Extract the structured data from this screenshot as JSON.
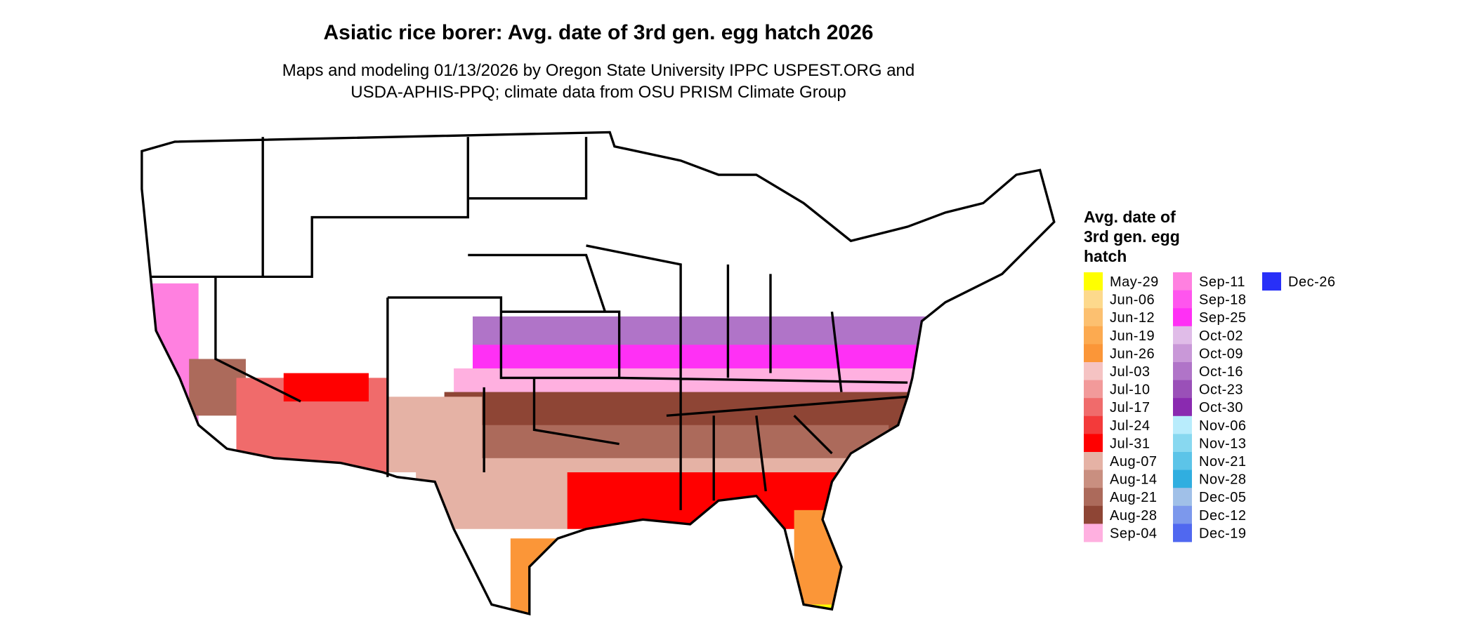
{
  "title": "Asiatic rice borer: Avg. date of 3rd gen. egg hatch 2026",
  "subtitle": [
    "Maps and modeling 01/13/2026 by Oregon State University IPPC USPEST.ORG and",
    "USDA-APHIS-PPQ; climate data from OSU PRISM Climate Group"
  ],
  "legend": {
    "title": [
      "Avg. date of",
      "3rd gen. egg",
      "hatch"
    ],
    "items": [
      {
        "label": "May-29",
        "color": "#ffff00"
      },
      {
        "label": "Jun-06",
        "color": "#fdd98c"
      },
      {
        "label": "Jun-12",
        "color": "#fcc070"
      },
      {
        "label": "Jun-19",
        "color": "#fcaa50"
      },
      {
        "label": "Jun-26",
        "color": "#fb9638"
      },
      {
        "label": "Jul-03",
        "color": "#f5c3c3"
      },
      {
        "label": "Jul-10",
        "color": "#f29a9a"
      },
      {
        "label": "Jul-17",
        "color": "#f06b6b"
      },
      {
        "label": "Jul-24",
        "color": "#f33a3a"
      },
      {
        "label": "Jul-31",
        "color": "#ff0000"
      },
      {
        "label": "Aug-07",
        "color": "#e5b2a5"
      },
      {
        "label": "Aug-14",
        "color": "#c98f80"
      },
      {
        "label": "Aug-21",
        "color": "#ac6a5b"
      },
      {
        "label": "Aug-28",
        "color": "#8e4535"
      },
      {
        "label": "Sep-04",
        "color": "#ffb0e0"
      },
      {
        "label": "Sep-11",
        "color": "#ff80e0"
      },
      {
        "label": "Sep-18",
        "color": "#ff55ee"
      },
      {
        "label": "Sep-25",
        "color": "#ff30f5"
      },
      {
        "label": "Oct-02",
        "color": "#e0bce8"
      },
      {
        "label": "Oct-09",
        "color": "#c998d8"
      },
      {
        "label": "Oct-16",
        "color": "#b074c8"
      },
      {
        "label": "Oct-23",
        "color": "#9a50b8"
      },
      {
        "label": "Oct-30",
        "color": "#8a2ab0"
      },
      {
        "label": "Nov-06",
        "color": "#b8ecfc"
      },
      {
        "label": "Nov-13",
        "color": "#88d8f0"
      },
      {
        "label": "Nov-21",
        "color": "#5cc4e8"
      },
      {
        "label": "Nov-28",
        "color": "#30aee0"
      },
      {
        "label": "Dec-05",
        "color": "#a0c0e8"
      },
      {
        "label": "Dec-12",
        "color": "#7c98ec"
      },
      {
        "label": "Dec-19",
        "color": "#5068f0"
      },
      {
        "label": "Dec-26",
        "color": "#2830f8"
      }
    ]
  }
}
